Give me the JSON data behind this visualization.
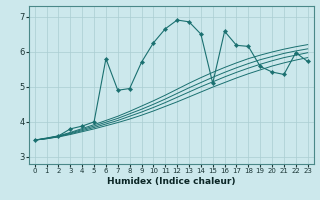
{
  "bg_color": "#cce8ec",
  "grid_color": "#aacdd2",
  "line_color": "#1a7070",
  "xlabel": "Humidex (Indice chaleur)",
  "xlim": [
    -0.5,
    23.5
  ],
  "ylim": [
    2.8,
    7.3
  ],
  "xticks": [
    0,
    1,
    2,
    3,
    4,
    5,
    6,
    7,
    8,
    9,
    10,
    11,
    12,
    13,
    14,
    15,
    16,
    17,
    18,
    19,
    20,
    21,
    22,
    23
  ],
  "yticks": [
    3,
    4,
    5,
    6,
    7
  ],
  "linear_series": [
    [
      3.48,
      3.52,
      3.57,
      3.64,
      3.72,
      3.8,
      3.89,
      3.98,
      4.08,
      4.19,
      4.31,
      4.44,
      4.57,
      4.71,
      4.85,
      4.99,
      5.12,
      5.25,
      5.37,
      5.48,
      5.59,
      5.68,
      5.76,
      5.83
    ],
    [
      3.48,
      3.52,
      3.58,
      3.66,
      3.75,
      3.84,
      3.94,
      4.04,
      4.16,
      4.28,
      4.41,
      4.55,
      4.7,
      4.85,
      5.0,
      5.14,
      5.28,
      5.41,
      5.53,
      5.64,
      5.74,
      5.83,
      5.9,
      5.97
    ],
    [
      3.48,
      3.53,
      3.59,
      3.68,
      3.78,
      3.88,
      3.99,
      4.1,
      4.23,
      4.36,
      4.5,
      4.65,
      4.81,
      4.97,
      5.12,
      5.27,
      5.41,
      5.54,
      5.66,
      5.77,
      5.86,
      5.95,
      6.02,
      6.08
    ],
    [
      3.48,
      3.53,
      3.6,
      3.7,
      3.81,
      3.92,
      4.04,
      4.16,
      4.3,
      4.45,
      4.6,
      4.76,
      4.93,
      5.1,
      5.26,
      5.41,
      5.55,
      5.68,
      5.8,
      5.9,
      5.99,
      6.07,
      6.14,
      6.2
    ]
  ],
  "peak_x": [
    0,
    2,
    3,
    4,
    5,
    6,
    7,
    8,
    9,
    10,
    11,
    12,
    13,
    14,
    15,
    16,
    17,
    18,
    19,
    20,
    21,
    22,
    23
  ],
  "peak_y": [
    3.48,
    3.6,
    3.8,
    3.88,
    4.0,
    5.8,
    4.9,
    4.95,
    5.7,
    6.25,
    6.65,
    6.9,
    6.85,
    6.5,
    5.1,
    6.58,
    6.18,
    6.15,
    5.58,
    5.42,
    5.35,
    5.97,
    5.72
  ],
  "figsize": [
    3.2,
    2.0
  ],
  "dpi": 100
}
